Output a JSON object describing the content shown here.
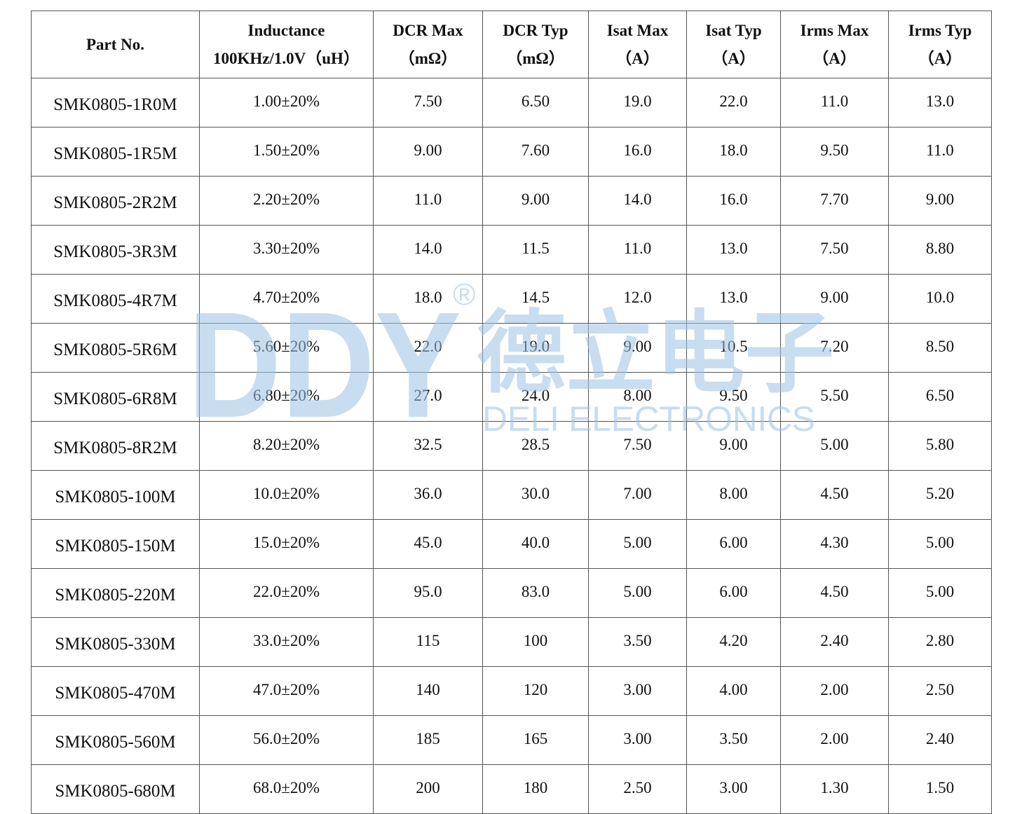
{
  "watermark": {
    "logo_text": "DDY",
    "cn_name": "德立电子",
    "en_name": "DELI ELECTRONICS",
    "registered": "®",
    "color": "#9cc3e4"
  },
  "table": {
    "headers": [
      {
        "line1": "Part No.",
        "line2": ""
      },
      {
        "line1": "Inductance",
        "line2": "100KHz/1.0V（uH）"
      },
      {
        "line1": "DCR Max",
        "line2": "（mΩ）"
      },
      {
        "line1": "DCR Typ",
        "line2": "（mΩ）"
      },
      {
        "line1": "Isat Max",
        "line2": "（A）"
      },
      {
        "line1": "Isat Typ",
        "line2": "（A）"
      },
      {
        "line1": "Irms Max",
        "line2": "（A）"
      },
      {
        "line1": "Irms Typ",
        "line2": "（A）"
      }
    ],
    "rows": [
      [
        "SMK0805-1R0M",
        "1.00±20%",
        "7.50",
        "6.50",
        "19.0",
        "22.0",
        "11.0",
        "13.0"
      ],
      [
        "SMK0805-1R5M",
        "1.50±20%",
        "9.00",
        "7.60",
        "16.0",
        "18.0",
        "9.50",
        "11.0"
      ],
      [
        "SMK0805-2R2M",
        "2.20±20%",
        "11.0",
        "9.00",
        "14.0",
        "16.0",
        "7.70",
        "9.00"
      ],
      [
        "SMK0805-3R3M",
        "3.30±20%",
        "14.0",
        "11.5",
        "11.0",
        "13.0",
        "7.50",
        "8.80"
      ],
      [
        "SMK0805-4R7M",
        "4.70±20%",
        "18.0",
        "14.5",
        "12.0",
        "13.0",
        "9.00",
        "10.0"
      ],
      [
        "SMK0805-5R6M",
        "5.60±20%",
        "22.0",
        "19.0",
        "9.00",
        "10.5",
        "7.20",
        "8.50"
      ],
      [
        "SMK0805-6R8M",
        "6.80±20%",
        "27.0",
        "24.0",
        "8.00",
        "9.50",
        "5.50",
        "6.50"
      ],
      [
        "SMK0805-8R2M",
        "8.20±20%",
        "32.5",
        "28.5",
        "7.50",
        "9.00",
        "5.00",
        "5.80"
      ],
      [
        "SMK0805-100M",
        "10.0±20%",
        "36.0",
        "30.0",
        "7.00",
        "8.00",
        "4.50",
        "5.20"
      ],
      [
        "SMK0805-150M",
        "15.0±20%",
        "45.0",
        "40.0",
        "5.00",
        "6.00",
        "4.30",
        "5.00"
      ],
      [
        "SMK0805-220M",
        "22.0±20%",
        "95.0",
        "83.0",
        "5.00",
        "6.00",
        "4.50",
        "5.00"
      ],
      [
        "SMK0805-330M",
        "33.0±20%",
        "115",
        "100",
        "3.50",
        "4.20",
        "2.40",
        "2.80"
      ],
      [
        "SMK0805-470M",
        "47.0±20%",
        "140",
        "120",
        "3.00",
        "4.00",
        "2.00",
        "2.50"
      ],
      [
        "SMK0805-560M",
        "56.0±20%",
        "185",
        "165",
        "3.00",
        "3.50",
        "2.00",
        "2.40"
      ],
      [
        "SMK0805-680M",
        "68.0±20%",
        "200",
        "180",
        "2.50",
        "3.00",
        "1.30",
        "1.50"
      ]
    ]
  }
}
